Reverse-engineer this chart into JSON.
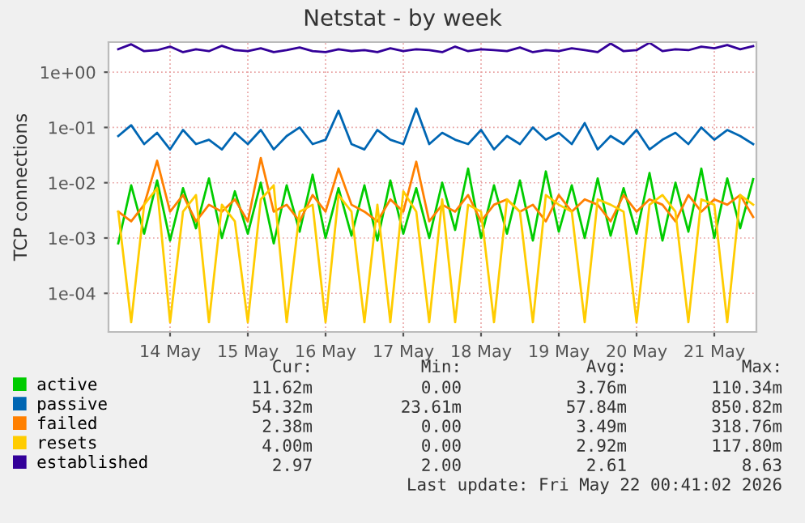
{
  "chart_data": {
    "type": "line",
    "title": "Netstat - by week",
    "ylabel": "TCP connections",
    "x": [
      "2026-05-13T20:00",
      "2026-05-14T00:00",
      "2026-05-14T04:00",
      "2026-05-14T08:00",
      "2026-05-14T12:00",
      "2026-05-14T16:00",
      "2026-05-14T20:00",
      "2026-05-15T00:00",
      "2026-05-15T04:00",
      "2026-05-15T08:00",
      "2026-05-15T12:00",
      "2026-05-15T16:00",
      "2026-05-15T20:00",
      "2026-05-16T00:00",
      "2026-05-16T04:00",
      "2026-05-16T08:00",
      "2026-05-16T12:00",
      "2026-05-16T16:00",
      "2026-05-16T20:00",
      "2026-05-17T00:00",
      "2026-05-17T04:00",
      "2026-05-17T08:00",
      "2026-05-17T12:00",
      "2026-05-17T16:00",
      "2026-05-17T20:00",
      "2026-05-18T00:00",
      "2026-05-18T04:00",
      "2026-05-18T08:00",
      "2026-05-18T12:00",
      "2026-05-18T16:00",
      "2026-05-18T20:00",
      "2026-05-19T00:00",
      "2026-05-19T04:00",
      "2026-05-19T08:00",
      "2026-05-19T12:00",
      "2026-05-19T16:00",
      "2026-05-19T20:00",
      "2026-05-20T00:00",
      "2026-05-20T04:00",
      "2026-05-20T08:00",
      "2026-05-20T12:00",
      "2026-05-20T16:00",
      "2026-05-20T20:00",
      "2026-05-21T00:00",
      "2026-05-21T04:00",
      "2026-05-21T08:00",
      "2026-05-21T12:00",
      "2026-05-21T16:00",
      "2026-05-21T20:00",
      "2026-05-22T00:00"
    ],
    "series": [
      {
        "name": "active",
        "color": "#00cc00",
        "values": [
          0.0008,
          0.009,
          0.0012,
          0.011,
          0.0009,
          0.008,
          0.0015,
          0.012,
          0.001,
          0.007,
          0.0012,
          0.01,
          0.0008,
          0.009,
          0.0013,
          0.014,
          0.001,
          0.008,
          0.0011,
          0.009,
          0.0009,
          0.011,
          0.0012,
          0.008,
          0.001,
          0.01,
          0.0014,
          0.018,
          0.001,
          0.009,
          0.0012,
          0.011,
          0.0009,
          0.016,
          0.0013,
          0.009,
          0.001,
          0.012,
          0.0011,
          0.008,
          0.0012,
          0.015,
          0.0009,
          0.01,
          0.0013,
          0.018,
          0.001,
          0.012,
          0.0015,
          0.0116
        ]
      },
      {
        "name": "passive",
        "color": "#0066b3",
        "values": [
          0.07,
          0.11,
          0.05,
          0.08,
          0.04,
          0.09,
          0.05,
          0.06,
          0.04,
          0.08,
          0.05,
          0.09,
          0.04,
          0.07,
          0.1,
          0.05,
          0.06,
          0.2,
          0.05,
          0.04,
          0.09,
          0.06,
          0.05,
          0.22,
          0.05,
          0.08,
          0.06,
          0.05,
          0.09,
          0.04,
          0.07,
          0.05,
          0.1,
          0.06,
          0.08,
          0.05,
          0.12,
          0.04,
          0.07,
          0.05,
          0.09,
          0.04,
          0.06,
          0.08,
          0.05,
          0.1,
          0.06,
          0.09,
          0.07,
          0.05
        ]
      },
      {
        "name": "failed",
        "color": "#ff8000",
        "values": [
          0.003,
          0.002,
          0.004,
          0.025,
          0.003,
          0.006,
          0.002,
          0.004,
          0.003,
          0.005,
          0.002,
          0.028,
          0.003,
          0.004,
          0.002,
          0.006,
          0.003,
          0.018,
          0.004,
          0.003,
          0.002,
          0.005,
          0.003,
          0.024,
          0.002,
          0.004,
          0.003,
          0.006,
          0.002,
          0.004,
          0.005,
          0.003,
          0.004,
          0.002,
          0.006,
          0.003,
          0.005,
          0.004,
          0.002,
          0.006,
          0.003,
          0.005,
          0.004,
          0.002,
          0.006,
          0.003,
          0.005,
          0.004,
          0.006,
          0.0024
        ]
      },
      {
        "name": "resets",
        "color": "#ffcc00",
        "values": [
          0.003,
          3e-05,
          0.004,
          0.008,
          3e-05,
          0.003,
          0.006,
          3e-05,
          0.004,
          0.002,
          3e-05,
          0.005,
          0.009,
          3e-05,
          0.003,
          0.004,
          3e-05,
          0.006,
          0.003,
          3e-05,
          0.004,
          3e-05,
          0.007,
          0.003,
          3e-05,
          0.005,
          3e-05,
          0.004,
          0.003,
          3e-05,
          0.005,
          0.003,
          3e-05,
          0.006,
          0.004,
          0.003,
          3e-05,
          0.005,
          0.004,
          0.003,
          3e-05,
          0.004,
          0.006,
          0.003,
          3e-05,
          0.005,
          0.004,
          3e-05,
          0.006,
          0.004
        ]
      },
      {
        "name": "established",
        "color": "#330099",
        "values": [
          2.6,
          3.2,
          2.4,
          2.5,
          2.9,
          2.3,
          2.6,
          2.4,
          3.0,
          2.5,
          2.4,
          2.7,
          2.3,
          2.5,
          2.8,
          2.4,
          2.3,
          2.6,
          2.4,
          2.5,
          2.3,
          2.7,
          2.4,
          2.6,
          2.5,
          2.3,
          2.9,
          2.4,
          2.6,
          2.5,
          2.4,
          2.8,
          2.3,
          2.5,
          2.4,
          2.7,
          2.5,
          2.3,
          3.3,
          2.4,
          2.5,
          3.4,
          2.4,
          2.6,
          2.5,
          2.9,
          2.7,
          3.1,
          2.6,
          2.97
        ]
      }
    ],
    "log": "y",
    "ylim": [
      2e-05,
      3.5
    ],
    "yticks": [
      {
        "value": 0.0001,
        "label": "1e-04"
      },
      {
        "value": 0.001,
        "label": "1e-03"
      },
      {
        "value": 0.01,
        "label": "1e-02"
      },
      {
        "value": 0.1,
        "label": "1e-01"
      },
      {
        "value": 1,
        "label": "1e+00"
      }
    ],
    "xlim": [
      "2026-05-13T17:00",
      "2026-05-22T01:00"
    ],
    "xticks": [
      {
        "value": "2026-05-14T12:00",
        "label": "14 May"
      },
      {
        "value": "2026-05-15T12:00",
        "label": "15 May"
      },
      {
        "value": "2026-05-16T12:00",
        "label": "16 May"
      },
      {
        "value": "2026-05-17T12:00",
        "label": "17 May"
      },
      {
        "value": "2026-05-18T12:00",
        "label": "18 May"
      },
      {
        "value": "2026-05-19T12:00",
        "label": "19 May"
      },
      {
        "value": "2026-05-20T12:00",
        "label": "20 May"
      },
      {
        "value": "2026-05-21T12:00",
        "label": "21 May"
      }
    ],
    "grid": true,
    "legend": "bottom left",
    "marker": "none",
    "line_style": "solid",
    "annotations": [
      "Cur:",
      "Min:",
      "Avg:",
      "Max:",
      "11.62m",
      "0.00",
      "3.76m",
      "110.34m",
      "54.32m",
      "23.61m",
      "57.84m",
      "850.82m",
      "2.38m",
      "0.00",
      "3.49m",
      "318.76m",
      "4.00m",
      "0.00",
      "2.92m",
      "117.80m",
      "2.97",
      "2.00",
      "2.61",
      "8.63",
      "Last update: Fri May 22 00:41:02 2026"
    ]
  }
}
